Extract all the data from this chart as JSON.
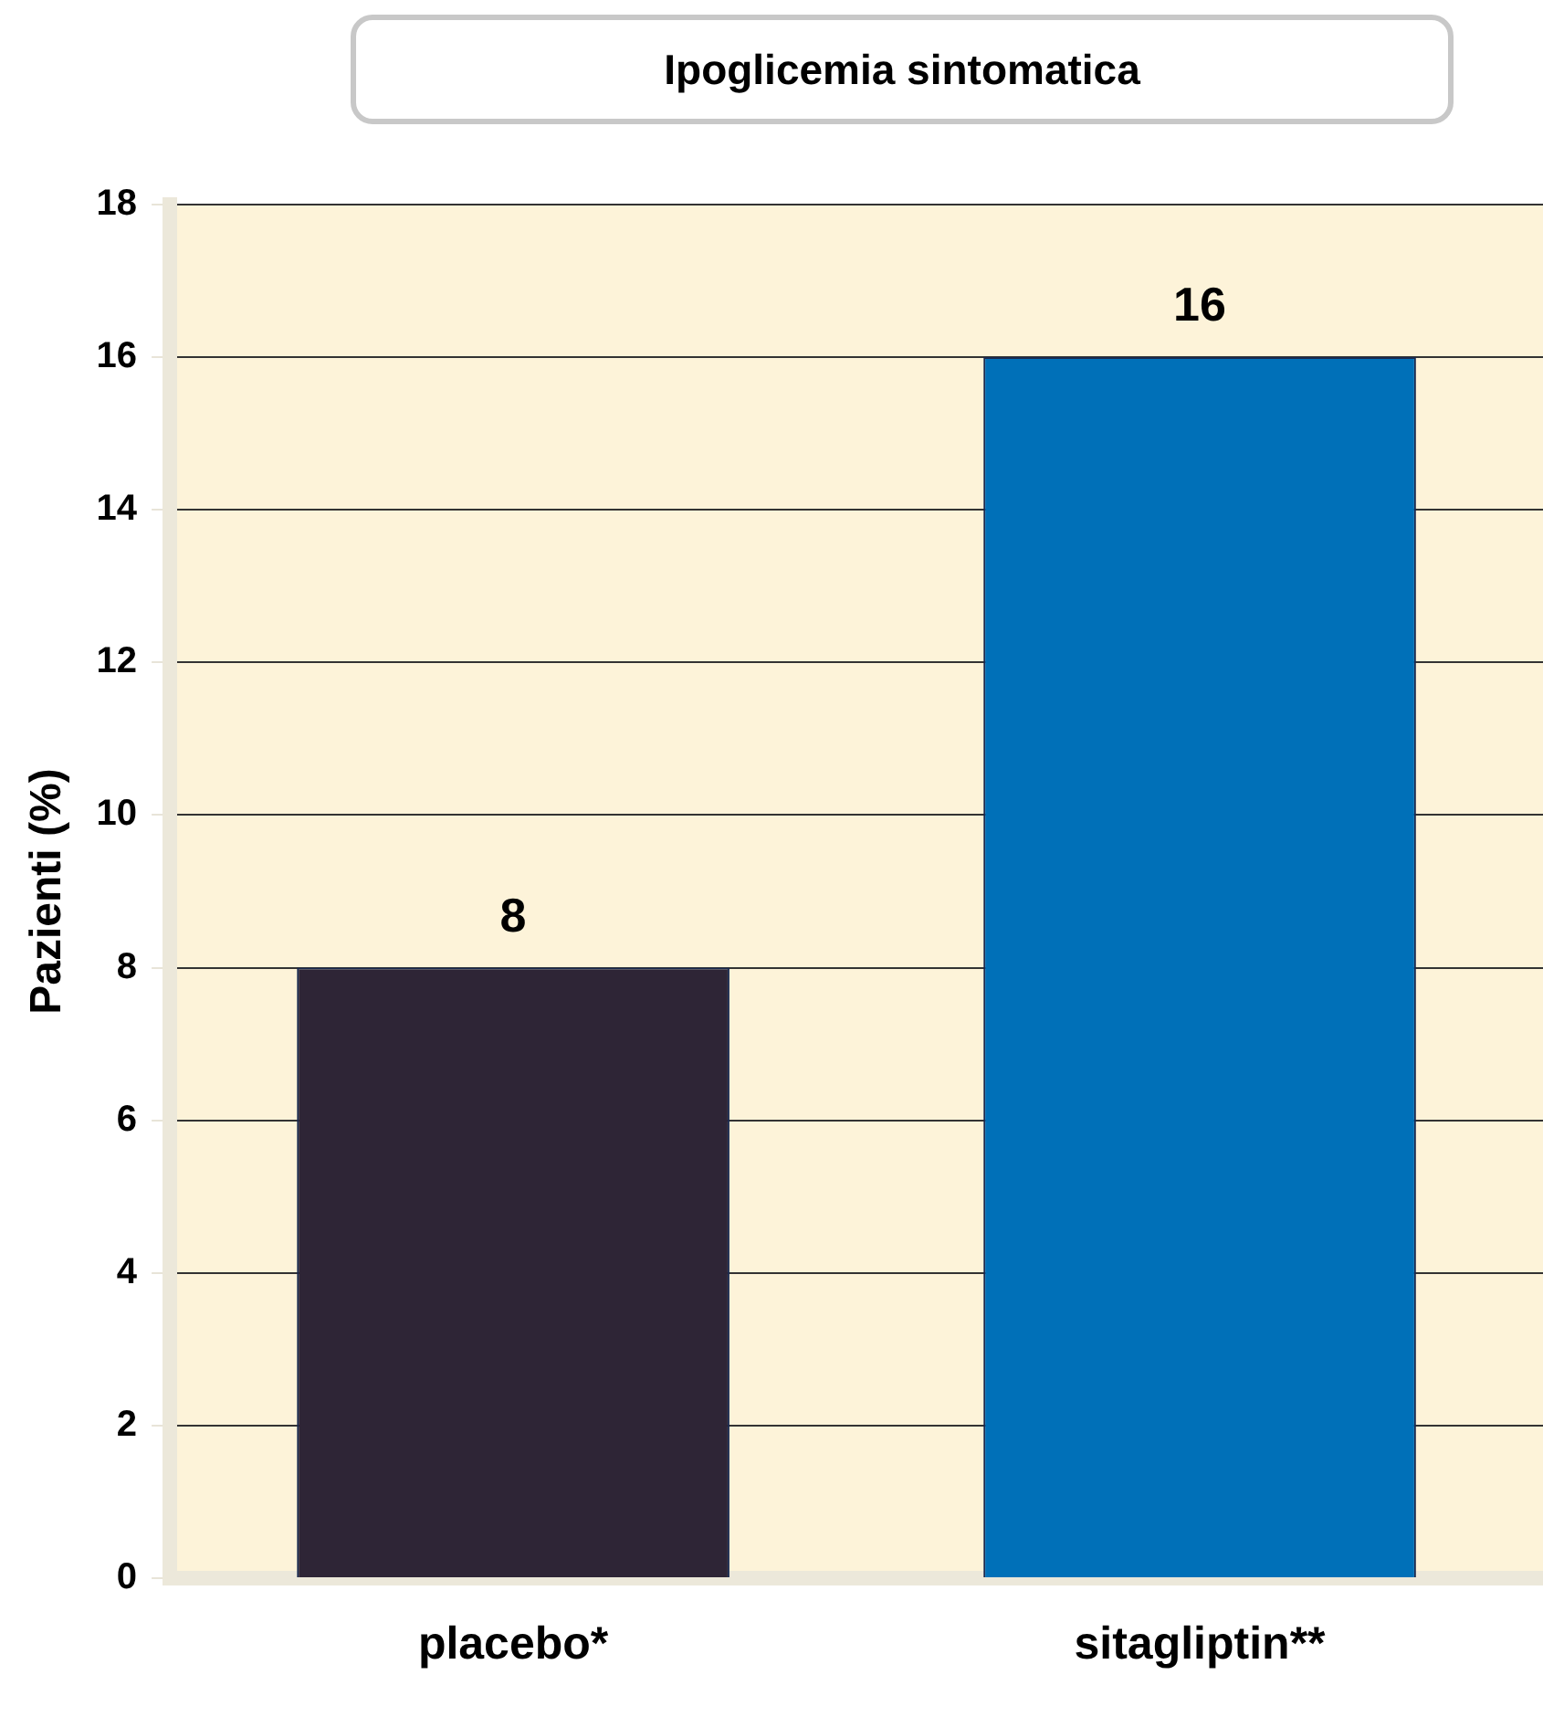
{
  "chart_data": {
    "type": "bar",
    "title": "Ipoglicemia sintomatica",
    "ylabel": "Pazienti (%)",
    "categories": [
      "placebo*",
      "sitagliptin**"
    ],
    "values": [
      8,
      16
    ],
    "colors": [
      "#2e2536",
      "#0070b8"
    ],
    "ylim": [
      0,
      18
    ],
    "yticks": [
      0,
      2,
      4,
      6,
      8,
      10,
      12,
      14,
      16,
      18
    ],
    "grid": "y",
    "data_labels": true
  }
}
